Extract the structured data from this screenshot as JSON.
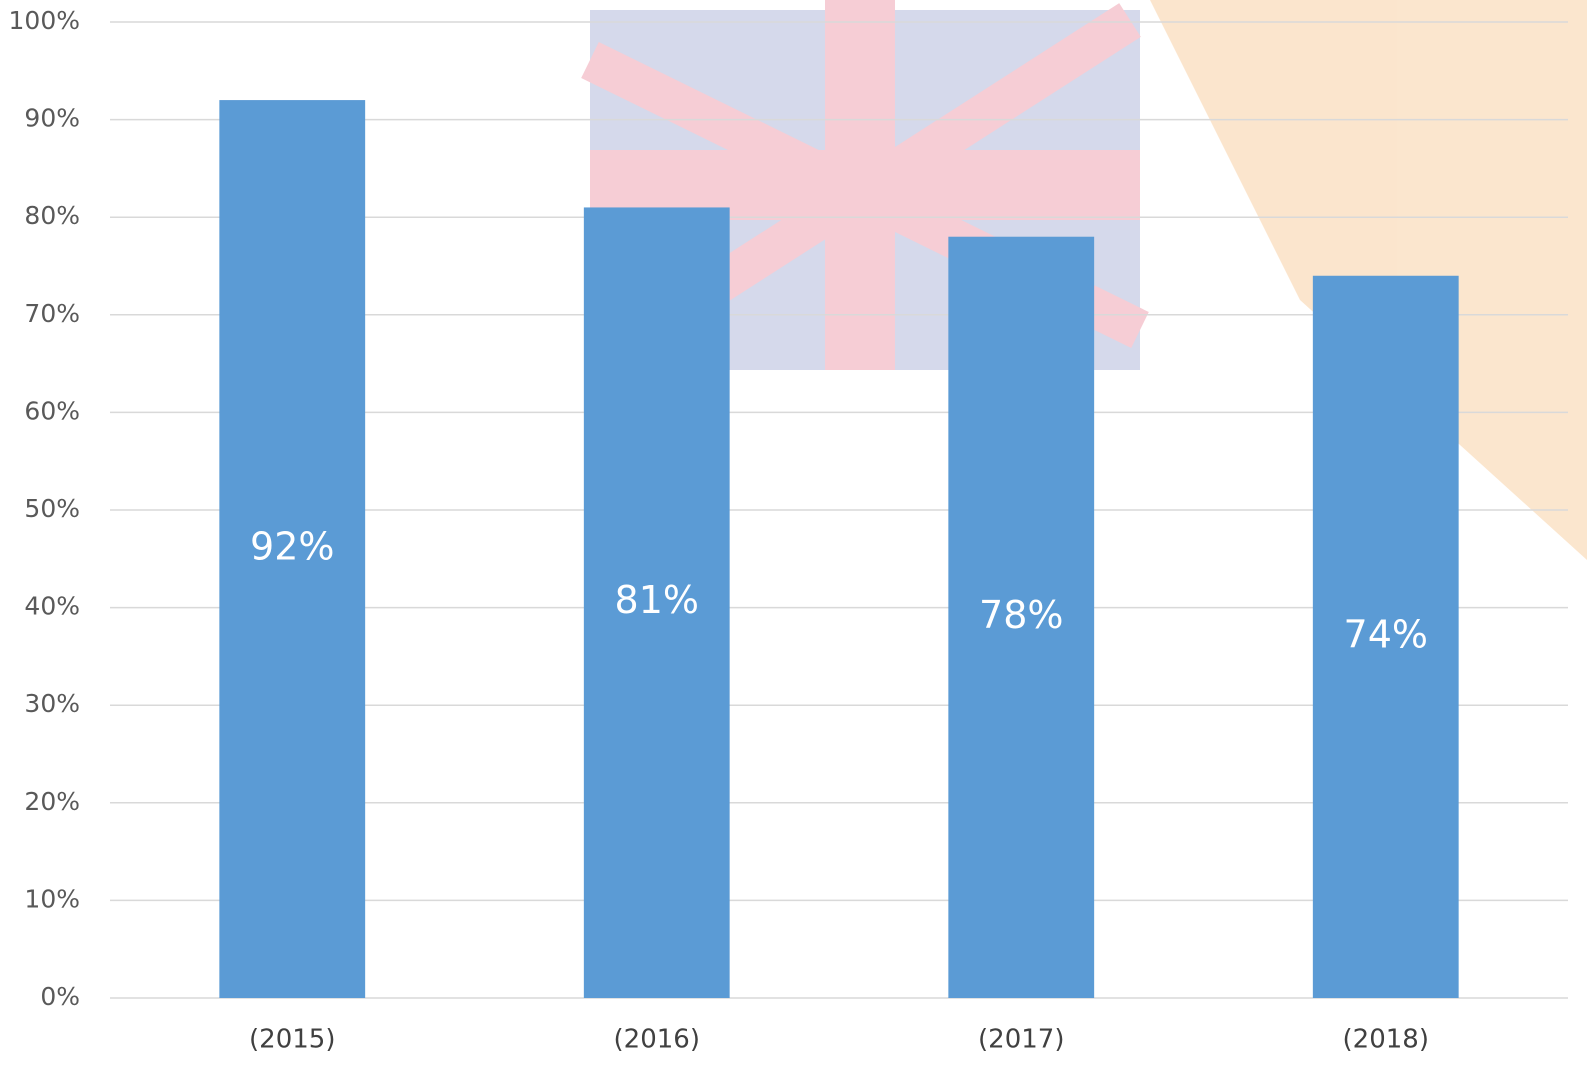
{
  "chart_data": {
    "type": "bar",
    "categories": [
      "(2015)",
      "(2016)",
      "(2017)",
      "(2018)"
    ],
    "values": [
      92,
      81,
      78,
      74
    ],
    "value_labels": [
      "92%",
      "81%",
      "78%",
      "74%"
    ],
    "color": "#5b9bd5",
    "ylim": [
      0,
      100
    ],
    "yticks": [
      {
        "value": 0,
        "label": "0%"
      },
      {
        "value": 10,
        "label": "10%"
      },
      {
        "value": 20,
        "label": "20%"
      },
      {
        "value": 30,
        "label": "30%"
      },
      {
        "value": 40,
        "label": "40%"
      },
      {
        "value": 50,
        "label": "50%"
      },
      {
        "value": 60,
        "label": "60%"
      },
      {
        "value": 70,
        "label": "70%"
      },
      {
        "value": 80,
        "label": "80%"
      },
      {
        "value": 90,
        "label": "90%"
      },
      {
        "value": 100,
        "label": "100%"
      }
    ],
    "grid": true
  }
}
